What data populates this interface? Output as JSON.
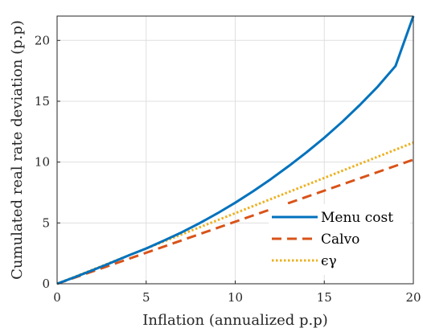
{
  "chart_data": {
    "type": "line",
    "xlabel": "Inflation (annualized p.p)",
    "ylabel": "Cumulated real rate deviation (p.p)",
    "xlim": [
      0,
      20
    ],
    "ylim": [
      0,
      22
    ],
    "xticks": [
      "0",
      "5",
      "10",
      "15",
      "20"
    ],
    "yticks": [
      "0",
      "5",
      "10",
      "15",
      "20"
    ],
    "grid": true,
    "legend_position": "bottom-right",
    "series": [
      {
        "name": "Menu cost",
        "color": "#0072BD",
        "style": "solid",
        "x": [
          0,
          1,
          2,
          3,
          4,
          5,
          6,
          7,
          8,
          9,
          10,
          11,
          12,
          13,
          14,
          15,
          16,
          17,
          18,
          19,
          20
        ],
        "y": [
          0,
          0.55,
          1.12,
          1.71,
          2.32,
          2.9,
          3.55,
          4.23,
          4.98,
          5.79,
          6.66,
          7.6,
          8.6,
          9.67,
          10.8,
          12.0,
          13.3,
          14.7,
          16.2,
          17.9,
          22.0
        ]
      },
      {
        "name": "Calvo",
        "color": "#D95319",
        "style": "dashed",
        "x": [
          0,
          20
        ],
        "y": [
          0,
          10.2
        ]
      },
      {
        "name": "ϵγ",
        "color": "#EDB120",
        "style": "dotted",
        "x": [
          0,
          20
        ],
        "y": [
          0,
          11.6
        ]
      }
    ]
  }
}
